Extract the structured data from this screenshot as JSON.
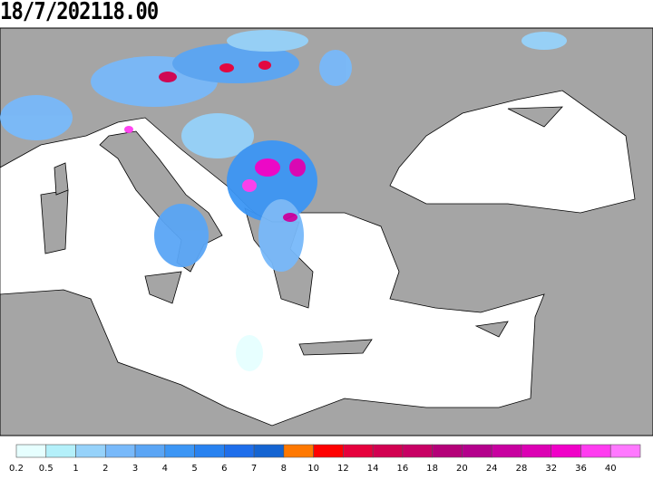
{
  "title": "18/7/202118.00",
  "legend": {
    "labels": [
      "0.2",
      "0.5",
      "1",
      "2",
      "3",
      "4",
      "5",
      "6",
      "7",
      "8",
      "10",
      "12",
      "14",
      "16",
      "18",
      "20",
      "24",
      "28",
      "32",
      "36",
      "40"
    ],
    "colors": [
      "#e6ffff",
      "#b4f0fa",
      "#96d2fa",
      "#78b9fa",
      "#5aa5f5",
      "#3c96f5",
      "#2882f0",
      "#1e6eeb",
      "#1464d2",
      "#ff7800",
      "#ff0000",
      "#e6003c",
      "#d20050",
      "#c80064",
      "#b40078",
      "#b4008c",
      "#c800a0",
      "#dc00b4",
      "#f000c8",
      "#ff3cf0",
      "#ff78ff"
    ]
  }
}
